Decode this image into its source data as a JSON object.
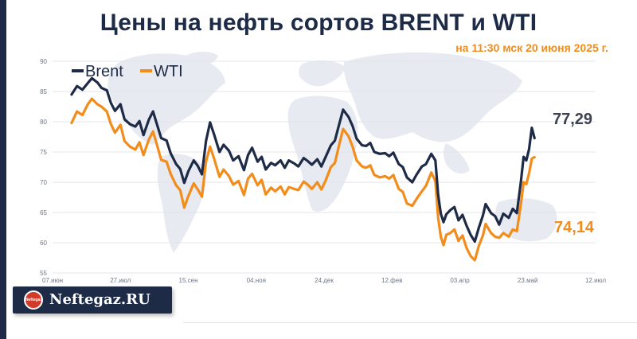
{
  "header": {
    "title": "Цены на нефть сортов BRENT и WTI",
    "subtitle": "на 11:30 мск 20 июня 2025 г."
  },
  "logo": {
    "name": "Neftegaz.RU",
    "badge_text": "Neftegaz.RU"
  },
  "chart_data": {
    "type": "line",
    "title": "Цены на нефть сортов BRENT и WTI",
    "subtitle": "на 11:30 мск 20 июня 2025 г.",
    "x_ticks": [
      "07.июн",
      "27.июл",
      "15.сен",
      "04.ноя",
      "24.дек",
      "12.фев",
      "03.апр",
      "23.май",
      "12.июл"
    ],
    "x_range_days": [
      0,
      400
    ],
    "ylim": [
      55,
      90
    ],
    "y_ticks": [
      55,
      60,
      65,
      70,
      75,
      80,
      85,
      90
    ],
    "grid": "horizontal",
    "legend": "top-left",
    "colors": {
      "brent": "#1e2b47",
      "wti": "#f28c1a"
    },
    "series": [
      {
        "name": "Brent",
        "color": "#1e2b47",
        "last_value_label": "77,29",
        "points": [
          [
            14,
            84.5
          ],
          [
            18,
            85.9
          ],
          [
            22,
            85.3
          ],
          [
            26,
            86.4
          ],
          [
            29,
            87.2
          ],
          [
            33,
            86.5
          ],
          [
            36,
            85.6
          ],
          [
            40,
            85.2
          ],
          [
            43,
            83.1
          ],
          [
            46,
            81.8
          ],
          [
            50,
            82.9
          ],
          [
            53,
            80.4
          ],
          [
            57,
            79.6
          ],
          [
            61,
            79.2
          ],
          [
            64,
            80.1
          ],
          [
            67,
            77.8
          ],
          [
            71,
            80.4
          ],
          [
            74,
            81.7
          ],
          [
            77,
            79.5
          ],
          [
            80,
            77.3
          ],
          [
            84,
            76.9
          ],
          [
            87,
            74.8
          ],
          [
            91,
            73.0
          ],
          [
            94,
            72.2
          ],
          [
            97,
            69.9
          ],
          [
            100,
            71.8
          ],
          [
            104,
            73.6
          ],
          [
            107,
            72.7
          ],
          [
            110,
            71.3
          ],
          [
            113,
            76.8
          ],
          [
            116,
            79.9
          ],
          [
            119,
            77.9
          ],
          [
            123,
            75.0
          ],
          [
            126,
            76.2
          ],
          [
            130,
            75.2
          ],
          [
            133,
            73.6
          ],
          [
            137,
            74.3
          ],
          [
            141,
            72.0
          ],
          [
            144,
            74.5
          ],
          [
            147,
            75.7
          ],
          [
            151,
            73.4
          ],
          [
            154,
            74.2
          ],
          [
            157,
            72.1
          ],
          [
            161,
            73.2
          ],
          [
            164,
            72.8
          ],
          [
            168,
            73.6
          ],
          [
            171,
            72.4
          ],
          [
            174,
            73.6
          ],
          [
            178,
            73.1
          ],
          [
            181,
            72.6
          ],
          [
            185,
            74.0
          ],
          [
            188,
            73.5
          ],
          [
            191,
            72.9
          ],
          [
            195,
            73.8
          ],
          [
            198,
            72.6
          ],
          [
            201,
            74.1
          ],
          [
            205,
            76.1
          ],
          [
            208,
            76.9
          ],
          [
            211,
            79.5
          ],
          [
            214,
            82.0
          ],
          [
            218,
            80.8
          ],
          [
            221,
            79.3
          ],
          [
            224,
            77.2
          ],
          [
            228,
            76.1
          ],
          [
            231,
            76.0
          ],
          [
            234,
            76.5
          ],
          [
            237,
            75.0
          ],
          [
            241,
            74.7
          ],
          [
            245,
            74.8
          ],
          [
            248,
            74.3
          ],
          [
            251,
            74.9
          ],
          [
            255,
            73.0
          ],
          [
            258,
            72.5
          ],
          [
            261,
            70.8
          ],
          [
            265,
            70.0
          ],
          [
            268,
            71.2
          ],
          [
            272,
            72.6
          ],
          [
            275,
            73.0
          ],
          [
            279,
            74.7
          ],
          [
            282,
            73.6
          ],
          [
            284,
            68.0
          ],
          [
            286,
            64.8
          ],
          [
            288,
            63.4
          ],
          [
            290,
            64.7
          ],
          [
            293,
            65.4
          ],
          [
            296,
            65.9
          ],
          [
            299,
            63.7
          ],
          [
            302,
            64.6
          ],
          [
            305,
            62.8
          ],
          [
            308,
            61.3
          ],
          [
            311,
            60.2
          ],
          [
            314,
            62.5
          ],
          [
            317,
            64.5
          ],
          [
            319,
            66.4
          ],
          [
            323,
            64.9
          ],
          [
            326,
            64.4
          ],
          [
            329,
            63.0
          ],
          [
            332,
            64.8
          ],
          [
            336,
            64.1
          ],
          [
            339,
            65.6
          ],
          [
            342,
            64.9
          ],
          [
            345,
            70.1
          ],
          [
            347,
            74.2
          ],
          [
            349,
            73.6
          ],
          [
            351,
            75.5
          ],
          [
            353,
            79.0
          ],
          [
            355,
            77.29
          ]
        ]
      },
      {
        "name": "WTI",
        "color": "#f28c1a",
        "last_value_label": "74,14",
        "points": [
          [
            14,
            79.8
          ],
          [
            18,
            81.7
          ],
          [
            22,
            81.1
          ],
          [
            26,
            82.9
          ],
          [
            29,
            83.8
          ],
          [
            33,
            82.9
          ],
          [
            36,
            82.5
          ],
          [
            40,
            81.7
          ],
          [
            43,
            79.6
          ],
          [
            46,
            78.2
          ],
          [
            50,
            79.5
          ],
          [
            53,
            76.8
          ],
          [
            57,
            75.9
          ],
          [
            61,
            75.4
          ],
          [
            64,
            76.6
          ],
          [
            67,
            74.5
          ],
          [
            71,
            77.1
          ],
          [
            74,
            78.4
          ],
          [
            77,
            76.1
          ],
          [
            80,
            73.7
          ],
          [
            84,
            73.4
          ],
          [
            87,
            71.4
          ],
          [
            91,
            69.5
          ],
          [
            94,
            68.7
          ],
          [
            97,
            65.8
          ],
          [
            100,
            67.7
          ],
          [
            104,
            69.8
          ],
          [
            107,
            68.8
          ],
          [
            110,
            67.6
          ],
          [
            113,
            73.4
          ],
          [
            116,
            75.9
          ],
          [
            119,
            73.9
          ],
          [
            123,
            70.9
          ],
          [
            126,
            72.1
          ],
          [
            130,
            71.0
          ],
          [
            133,
            69.6
          ],
          [
            137,
            70.2
          ],
          [
            141,
            67.9
          ],
          [
            144,
            70.6
          ],
          [
            147,
            71.4
          ],
          [
            151,
            69.5
          ],
          [
            154,
            70.4
          ],
          [
            157,
            68.0
          ],
          [
            161,
            69.1
          ],
          [
            164,
            68.5
          ],
          [
            168,
            69.3
          ],
          [
            171,
            68.0
          ],
          [
            174,
            69.2
          ],
          [
            178,
            68.9
          ],
          [
            181,
            68.7
          ],
          [
            185,
            70.1
          ],
          [
            188,
            69.6
          ],
          [
            191,
            68.9
          ],
          [
            195,
            70.0
          ],
          [
            198,
            68.8
          ],
          [
            201,
            70.2
          ],
          [
            205,
            72.5
          ],
          [
            208,
            73.2
          ],
          [
            211,
            76.1
          ],
          [
            214,
            78.8
          ],
          [
            218,
            77.6
          ],
          [
            221,
            75.9
          ],
          [
            224,
            73.6
          ],
          [
            228,
            72.6
          ],
          [
            231,
            72.4
          ],
          [
            234,
            72.8
          ],
          [
            237,
            71.2
          ],
          [
            241,
            70.8
          ],
          [
            245,
            71.0
          ],
          [
            248,
            70.6
          ],
          [
            251,
            71.2
          ],
          [
            255,
            68.9
          ],
          [
            258,
            68.4
          ],
          [
            261,
            66.5
          ],
          [
            265,
            66.1
          ],
          [
            268,
            67.2
          ],
          [
            272,
            68.5
          ],
          [
            275,
            69.4
          ],
          [
            279,
            71.6
          ],
          [
            282,
            70.2
          ],
          [
            284,
            64.2
          ],
          [
            286,
            61.0
          ],
          [
            288,
            59.6
          ],
          [
            290,
            61.3
          ],
          [
            293,
            61.6
          ],
          [
            296,
            62.2
          ],
          [
            299,
            60.3
          ],
          [
            302,
            61.2
          ],
          [
            305,
            59.1
          ],
          [
            308,
            57.8
          ],
          [
            311,
            57.1
          ],
          [
            314,
            59.5
          ],
          [
            317,
            61.2
          ],
          [
            319,
            63.1
          ],
          [
            323,
            61.6
          ],
          [
            326,
            61.0
          ],
          [
            329,
            60.8
          ],
          [
            332,
            61.6
          ],
          [
            336,
            61.0
          ],
          [
            339,
            62.2
          ],
          [
            342,
            61.9
          ],
          [
            345,
            66.4
          ],
          [
            347,
            70.0
          ],
          [
            349,
            69.7
          ],
          [
            351,
            71.5
          ],
          [
            353,
            73.9
          ],
          [
            355,
            74.14
          ]
        ]
      }
    ]
  }
}
